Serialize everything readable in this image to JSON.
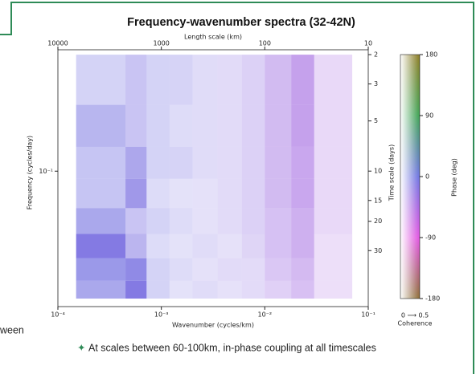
{
  "fragment": "ween",
  "bullet": "At scales between 60-100km, in-phase coupling at all timescales",
  "chart_data": {
    "type": "heatmap",
    "title": "Frequency-wavenumber spectra (32-42N)",
    "x_label": "Wavenumber (cycles/km)",
    "y_label": "Frequency (cycles/day)",
    "x2_label": "Length scale (km)",
    "y2_label": "Time scale (days)",
    "log_scale": true,
    "xlim": [
      0.0001,
      0.1
    ],
    "xticks": [
      {
        "value": 0.0001,
        "label": "10⁻⁴"
      },
      {
        "value": 0.001,
        "label": "10⁻³"
      },
      {
        "value": 0.01,
        "label": "10⁻²"
      },
      {
        "value": 0.1,
        "label": "10⁻¹"
      }
    ],
    "ylim": [
      0.0154,
      0.535
    ],
    "yticks": [
      {
        "value": 0.1,
        "label": "10⁻¹"
      }
    ],
    "x2lim": [
      10000,
      10
    ],
    "x2ticks": [
      10000,
      1000,
      100,
      10
    ],
    "y2lim": [
      65,
      1.87
    ],
    "y2ticks": [
      2,
      3,
      5,
      10,
      15,
      20,
      30
    ],
    "k_edges": [
      0.00015,
      0.00045,
      0.00072,
      0.0012,
      0.002,
      0.0035,
      0.006,
      0.01,
      0.018,
      0.03,
      0.07
    ],
    "f_edges": [
      0.0172,
      0.022,
      0.03,
      0.042,
      0.06,
      0.09,
      0.14,
      0.25,
      0.5
    ],
    "coherence": [
      [
        0.3,
        0.45,
        0.15,
        0.1,
        0.12,
        0.1,
        0.12,
        0.15,
        0.2,
        0.1
      ],
      [
        0.35,
        0.4,
        0.15,
        0.12,
        0.1,
        0.12,
        0.12,
        0.18,
        0.22,
        0.1
      ],
      [
        0.45,
        0.25,
        0.12,
        0.1,
        0.12,
        0.1,
        0.14,
        0.2,
        0.25,
        0.1
      ],
      [
        0.3,
        0.2,
        0.15,
        0.12,
        0.1,
        0.12,
        0.15,
        0.2,
        0.25,
        0.12
      ],
      [
        0.2,
        0.35,
        0.12,
        0.1,
        0.1,
        0.12,
        0.15,
        0.22,
        0.28,
        0.12
      ],
      [
        0.2,
        0.3,
        0.15,
        0.15,
        0.12,
        0.12,
        0.15,
        0.22,
        0.28,
        0.12
      ],
      [
        0.25,
        0.2,
        0.15,
        0.12,
        0.12,
        0.12,
        0.15,
        0.22,
        0.3,
        0.12
      ],
      [
        0.15,
        0.2,
        0.15,
        0.15,
        0.12,
        0.12,
        0.15,
        0.22,
        0.3,
        0.12
      ]
    ],
    "phase": [
      [
        -5,
        -10,
        -5,
        -10,
        -15,
        -20,
        -25,
        -35,
        -40,
        -45
      ],
      [
        -5,
        -8,
        -5,
        -10,
        -15,
        -20,
        -25,
        -35,
        -40,
        -45
      ],
      [
        -10,
        -10,
        -5,
        -10,
        -15,
        -20,
        -25,
        -35,
        -40,
        -45
      ],
      [
        -5,
        -10,
        -5,
        -10,
        -15,
        -20,
        -25,
        -35,
        -40,
        -45
      ],
      [
        -5,
        -10,
        -5,
        -10,
        -15,
        -20,
        -25,
        -35,
        -40,
        -45
      ],
      [
        -5,
        -10,
        -5,
        -10,
        -15,
        -20,
        -25,
        -35,
        -40,
        -45
      ],
      [
        -5,
        -10,
        -5,
        -10,
        -15,
        -20,
        -25,
        -35,
        -40,
        -45
      ],
      [
        -5,
        -10,
        -5,
        -10,
        -15,
        -20,
        -25,
        -35,
        -40,
        -45
      ]
    ],
    "colorbar": {
      "label": "Phase (deg)",
      "lim": [
        -180,
        180
      ],
      "ticks": [
        180,
        90,
        0,
        -90,
        -180
      ],
      "colors": [
        "#8a6a30",
        "#e050e0",
        "#6a70e0",
        "#3aa050",
        "#8a7a20"
      ],
      "coherence_label": "0 ⟶ 0.5",
      "coherence_title": "Coherence",
      "coherence_lim": [
        0,
        0.5
      ]
    }
  }
}
